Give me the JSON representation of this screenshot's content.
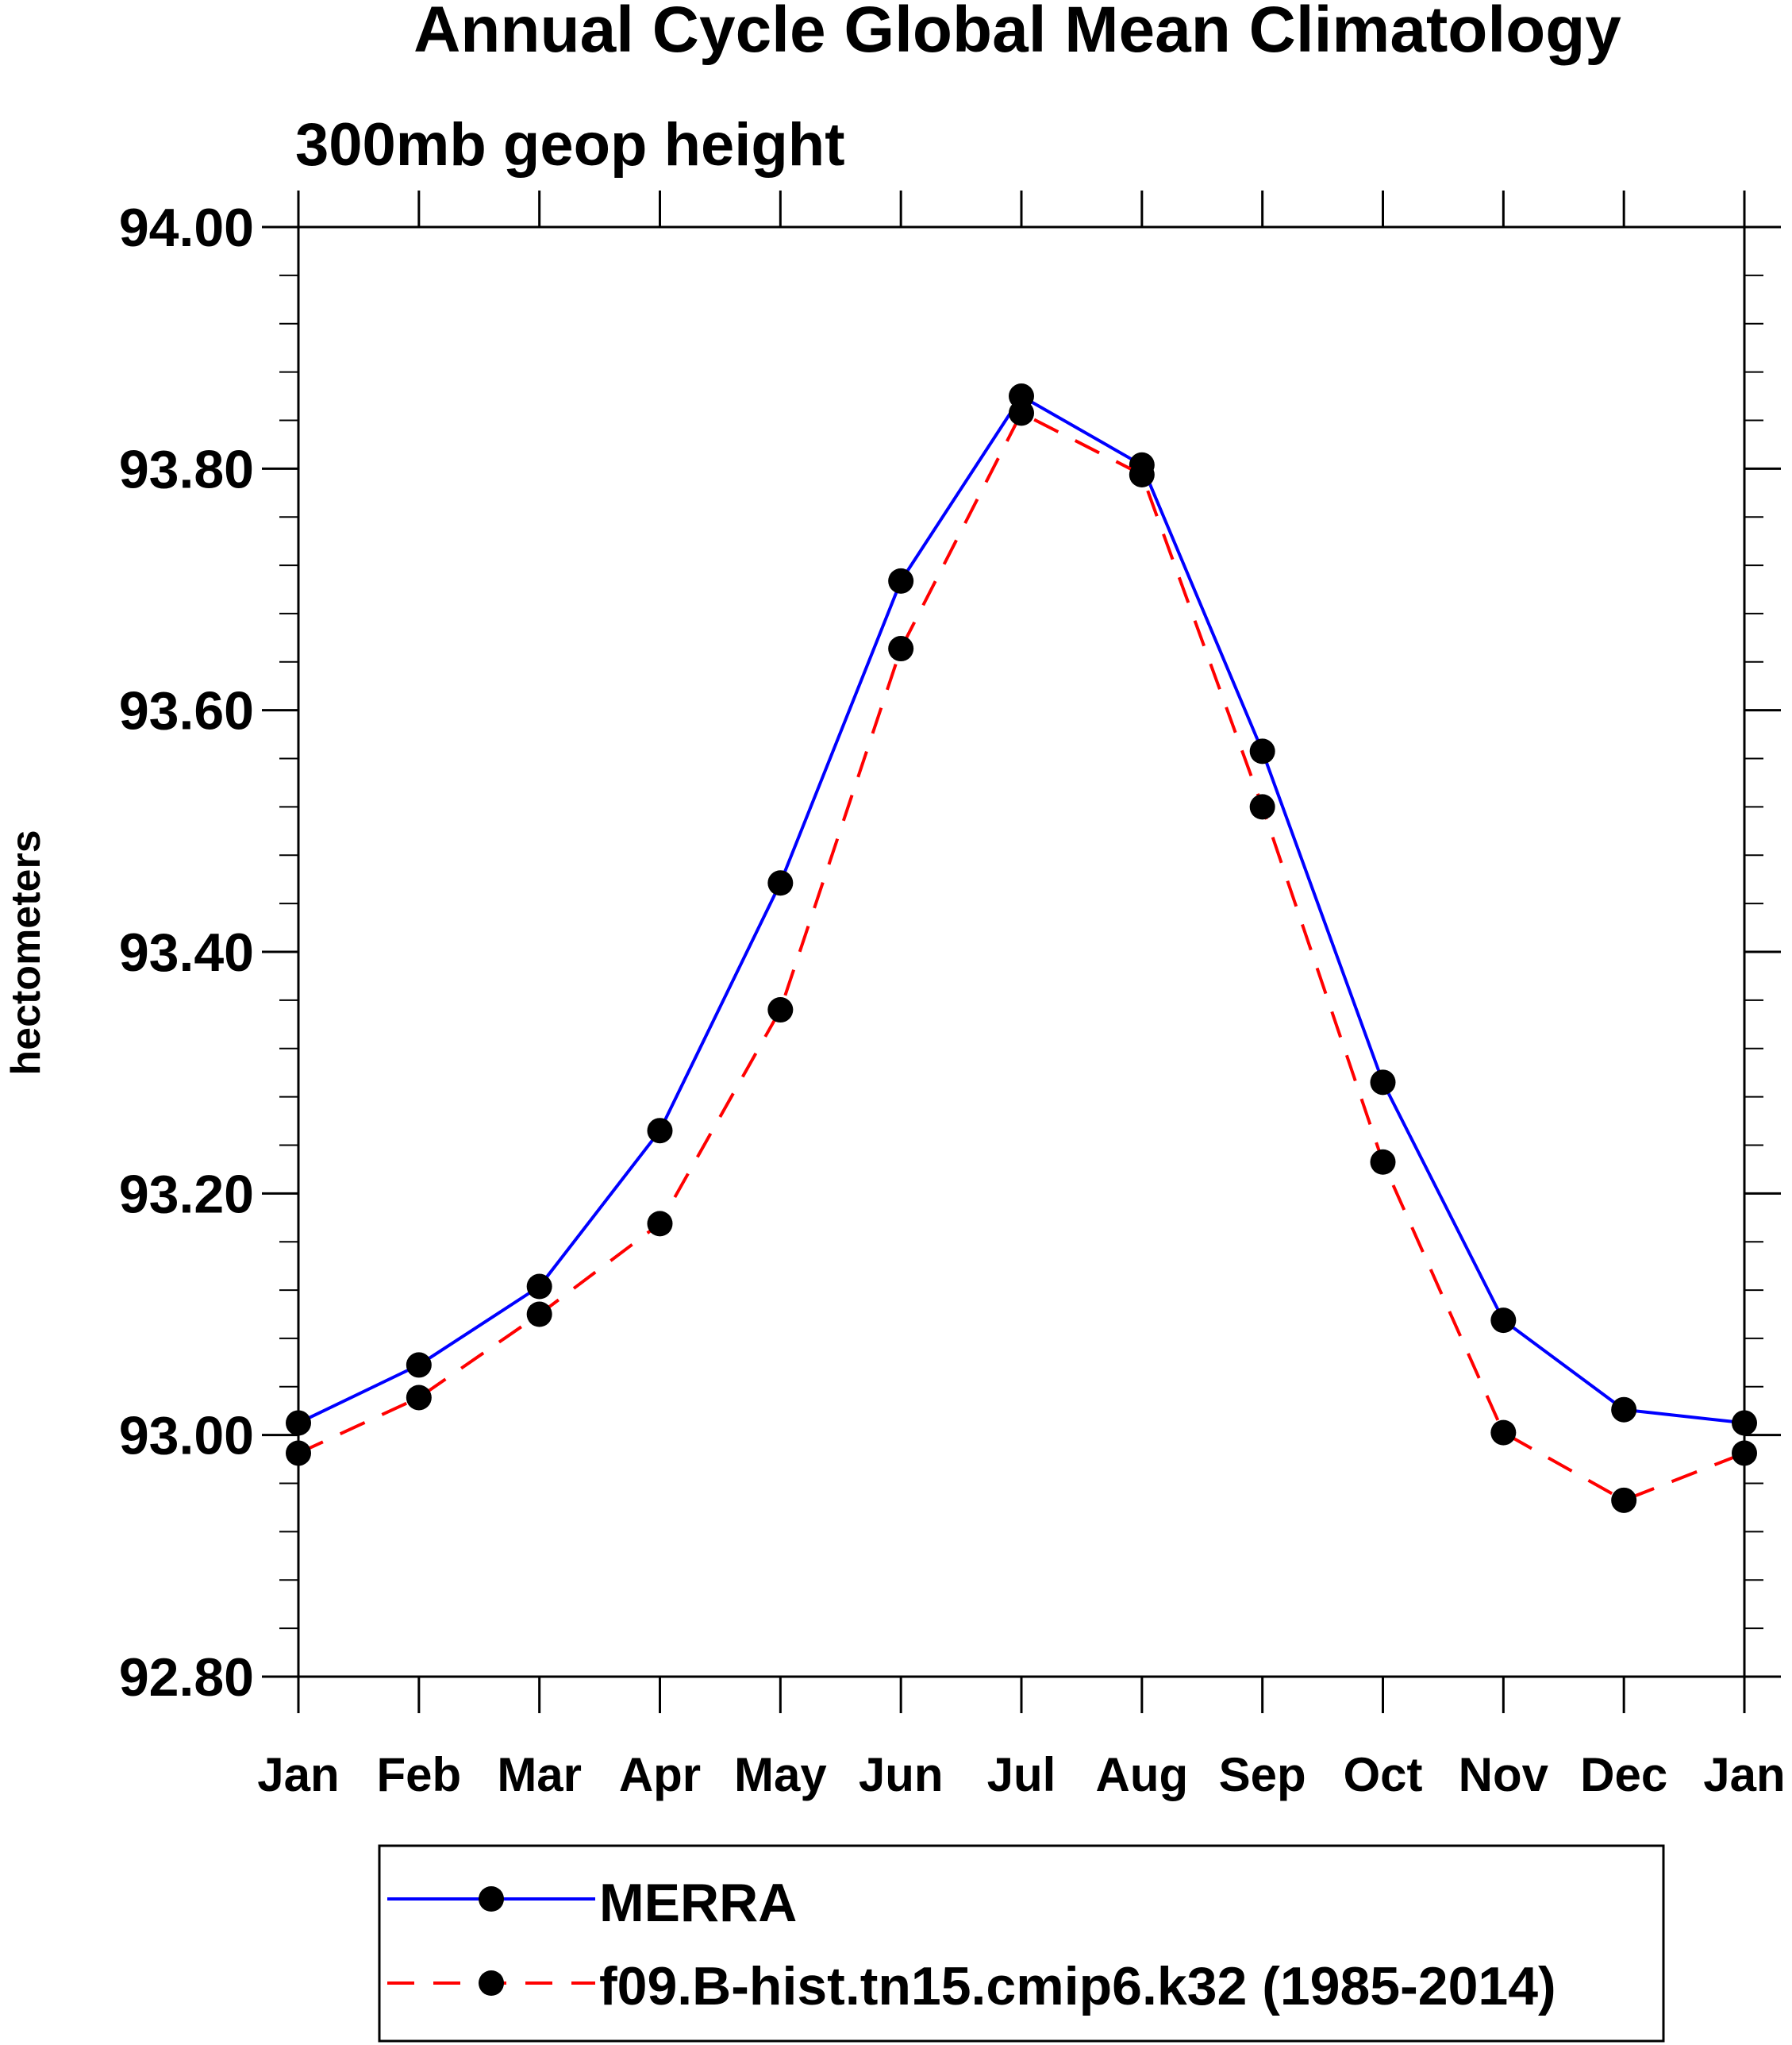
{
  "chart_data": {
    "type": "line",
    "title": "Annual Cycle Global Mean Climatology",
    "subtitle": "300mb geop height",
    "xlabel": "",
    "ylabel": "hectometers",
    "categories": [
      "Jan",
      "Feb",
      "Mar",
      "Apr",
      "May",
      "Jun",
      "Jul",
      "Aug",
      "Sep",
      "Oct",
      "Nov",
      "Dec",
      "Jan"
    ],
    "ylim": [
      92.8,
      94.0
    ],
    "yticks": [
      "92.80",
      "93.00",
      "93.20",
      "93.40",
      "93.60",
      "93.80",
      "94.00"
    ],
    "grid": false,
    "legend_position": "bottom",
    "series": [
      {
        "name": "MERRA",
        "color": "#0000ff",
        "dash": "solid",
        "marker": "filled-circle",
        "values": [
          93.01,
          93.058,
          93.123,
          93.252,
          93.457,
          93.707,
          93.86,
          93.803,
          93.566,
          93.292,
          93.095,
          93.021,
          93.01
        ]
      },
      {
        "name": "f09.B-hist.tn15.cmip6.k32 (1985-2014)",
        "color": "#ff0000",
        "dash": "dashed",
        "marker": "filled-circle",
        "values": [
          92.985,
          93.031,
          93.1,
          93.175,
          93.352,
          93.651,
          93.846,
          93.795,
          93.52,
          93.226,
          93.002,
          92.946,
          92.985
        ]
      }
    ]
  }
}
